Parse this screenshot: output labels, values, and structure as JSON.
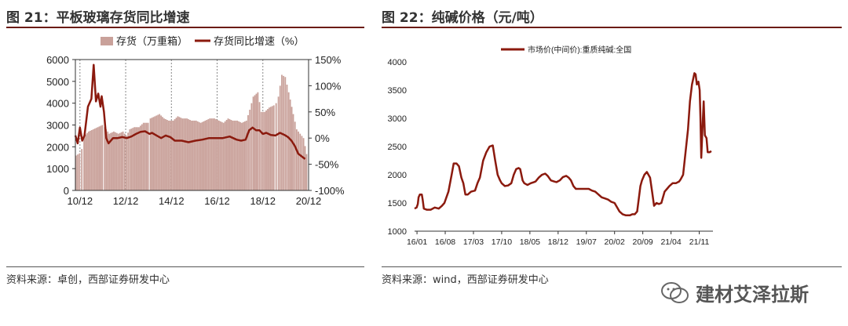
{
  "left": {
    "title": "图 21：平板玻璃存货同比增速",
    "source": "资料来源：卓创，西部证券研发中心"
  },
  "right": {
    "title": "图 22：纯碱价格（元/吨）",
    "source": "资料来源：wind，西部证券研发中心"
  },
  "watermark": {
    "text": "建材艾泽拉斯",
    "icon": "wechat-icon"
  },
  "colors": {
    "bar": "#c9a19a",
    "line": "#8b1a0e",
    "rule": "#6b1b14"
  },
  "chart_data": [
    {
      "type": "bar+line",
      "title": "",
      "legend": [
        "存货（万重箱）",
        "存货同比增速（%）"
      ],
      "legend_position": "top",
      "x_ticks": [
        "10/12",
        "12/12",
        "14/12",
        "16/12",
        "18/12",
        "20/12"
      ],
      "y_left": {
        "ylim": [
          0,
          6000
        ],
        "ticks": [
          "0",
          "1000",
          "2000",
          "3000",
          "4000",
          "5000",
          "6000"
        ]
      },
      "y_right": {
        "ylim": [
          -100,
          150
        ],
        "ticks": [
          "-100%",
          "-50%",
          "0%",
          "50%",
          "100%",
          "150%"
        ]
      },
      "grid": true,
      "series": [
        {
          "name": "存货（万重箱）",
          "kind": "bar",
          "axis": "left",
          "points": [
            [
              2010.75,
              1600
            ],
            [
              2010.9,
              1700
            ],
            [
              2011.0,
              1900
            ],
            [
              2011.1,
              2500
            ],
            [
              2011.3,
              2700
            ],
            [
              2011.5,
              2800
            ],
            [
              2011.7,
              2900
            ],
            [
              2011.9,
              3000
            ],
            [
              2012.0,
              2900
            ],
            [
              2012.2,
              2600
            ],
            [
              2012.4,
              2700
            ],
            [
              2012.6,
              2600
            ],
            [
              2012.8,
              2700
            ],
            [
              2012.95,
              2500
            ],
            [
              2013.1,
              2800
            ],
            [
              2013.3,
              2900
            ],
            [
              2013.5,
              2900
            ],
            [
              2013.7,
              3100
            ],
            [
              2013.9,
              3100
            ],
            [
              2014.0,
              3300
            ],
            [
              2014.2,
              3400
            ],
            [
              2014.4,
              3500
            ],
            [
              2014.6,
              3300
            ],
            [
              2014.8,
              3200
            ],
            [
              2015.0,
              3200
            ],
            [
              2015.2,
              3400
            ],
            [
              2015.4,
              3300
            ],
            [
              2015.6,
              3300
            ],
            [
              2015.8,
              3200
            ],
            [
              2016.0,
              3200
            ],
            [
              2016.2,
              3100
            ],
            [
              2016.4,
              3200
            ],
            [
              2016.6,
              3300
            ],
            [
              2016.8,
              3300
            ],
            [
              2017.0,
              3200
            ],
            [
              2017.2,
              3100
            ],
            [
              2017.4,
              3300
            ],
            [
              2017.6,
              3200
            ],
            [
              2017.8,
              3200
            ],
            [
              2018.0,
              3100
            ],
            [
              2018.2,
              3200
            ],
            [
              2018.35,
              3700
            ],
            [
              2018.5,
              4300
            ],
            [
              2018.7,
              4500
            ],
            [
              2018.85,
              3600
            ],
            [
              2019.0,
              3600
            ],
            [
              2019.2,
              3800
            ],
            [
              2019.4,
              3900
            ],
            [
              2019.5,
              4000
            ],
            [
              2019.6,
              4300
            ],
            [
              2019.75,
              5300
            ],
            [
              2019.9,
              5200
            ],
            [
              2020.05,
              4500
            ],
            [
              2020.25,
              3500
            ],
            [
              2020.4,
              2800
            ],
            [
              2020.55,
              2600
            ],
            [
              2020.7,
              2400
            ],
            [
              2020.9,
              1300
            ]
          ]
        },
        {
          "name": "存货同比增速（%）",
          "kind": "line",
          "axis": "right",
          "points": [
            [
              2010.75,
              5
            ],
            [
              2010.85,
              -10
            ],
            [
              2010.95,
              20
            ],
            [
              2011.05,
              -5
            ],
            [
              2011.15,
              5
            ],
            [
              2011.3,
              60
            ],
            [
              2011.45,
              75
            ],
            [
              2011.55,
              140
            ],
            [
              2011.65,
              70
            ],
            [
              2011.75,
              85
            ],
            [
              2011.85,
              60
            ],
            [
              2011.9,
              80
            ],
            [
              2012.0,
              50
            ],
            [
              2012.1,
              0
            ],
            [
              2012.2,
              -10
            ],
            [
              2012.4,
              0
            ],
            [
              2012.6,
              0
            ],
            [
              2012.8,
              2
            ],
            [
              2013.0,
              0
            ],
            [
              2013.2,
              3
            ],
            [
              2013.4,
              8
            ],
            [
              2013.6,
              12
            ],
            [
              2013.8,
              13
            ],
            [
              2014.0,
              8
            ],
            [
              2014.1,
              10
            ],
            [
              2014.3,
              5
            ],
            [
              2014.5,
              0
            ],
            [
              2014.7,
              5
            ],
            [
              2014.9,
              2
            ],
            [
              2015.1,
              -5
            ],
            [
              2015.4,
              -5
            ],
            [
              2015.7,
              -8
            ],
            [
              2016.0,
              -5
            ],
            [
              2016.3,
              -3
            ],
            [
              2016.6,
              0
            ],
            [
              2016.9,
              0
            ],
            [
              2017.2,
              0
            ],
            [
              2017.5,
              3
            ],
            [
              2017.8,
              -3
            ],
            [
              2018.0,
              -5
            ],
            [
              2018.2,
              -3
            ],
            [
              2018.35,
              15
            ],
            [
              2018.5,
              20
            ],
            [
              2018.65,
              15
            ],
            [
              2018.8,
              15
            ],
            [
              2018.95,
              8
            ],
            [
              2019.1,
              10
            ],
            [
              2019.3,
              6
            ],
            [
              2019.5,
              5
            ],
            [
              2019.7,
              10
            ],
            [
              2019.9,
              6
            ],
            [
              2020.05,
              2
            ],
            [
              2020.2,
              -5
            ],
            [
              2020.35,
              -15
            ],
            [
              2020.5,
              -30
            ],
            [
              2020.65,
              -35
            ],
            [
              2020.8,
              -40
            ]
          ]
        }
      ]
    },
    {
      "type": "line",
      "title": "",
      "legend": [
        "市场价(中间价):重质纯碱:全国"
      ],
      "legend_position": "top",
      "x_ticks": [
        "16/01",
        "16/08",
        "17/03",
        "17/10",
        "18/05",
        "18/12",
        "19/07",
        "20/02",
        "20/09",
        "21/04",
        "21/11"
      ],
      "ylim": [
        1000,
        4000
      ],
      "y_ticks": [
        "1000",
        "1500",
        "2000",
        "2500",
        "3000",
        "3500",
        "4000"
      ],
      "grid": false,
      "series": [
        {
          "name": "市场价(中间价):重质纯碱:全国",
          "points": [
            [
              0.0,
              1400
            ],
            [
              0.25,
              1420
            ],
            [
              0.4,
              1480
            ],
            [
              0.5,
              1600
            ],
            [
              0.65,
              1650
            ],
            [
              0.9,
              1650
            ],
            [
              1.0,
              1560
            ],
            [
              1.15,
              1400
            ],
            [
              1.5,
              1380
            ],
            [
              2.0,
              1380
            ],
            [
              2.5,
              1420
            ],
            [
              3.0,
              1400
            ],
            [
              3.4,
              1450
            ],
            [
              3.7,
              1500
            ],
            [
              4.2,
              1700
            ],
            [
              4.6,
              2000
            ],
            [
              4.85,
              2200
            ],
            [
              5.2,
              2200
            ],
            [
              5.5,
              2150
            ],
            [
              5.8,
              1950
            ],
            [
              6.05,
              1850
            ],
            [
              6.3,
              1650
            ],
            [
              6.6,
              1650
            ],
            [
              7.0,
              1700
            ],
            [
              7.5,
              1720
            ],
            [
              7.8,
              1850
            ],
            [
              8.1,
              1950
            ],
            [
              8.5,
              2250
            ],
            [
              8.9,
              2400
            ],
            [
              9.3,
              2500
            ],
            [
              9.7,
              2520
            ],
            [
              10.0,
              2250
            ],
            [
              10.3,
              2000
            ],
            [
              10.6,
              1900
            ],
            [
              10.8,
              1850
            ],
            [
              11.2,
              1800
            ],
            [
              11.6,
              1810
            ],
            [
              12.0,
              1850
            ],
            [
              12.3,
              2000
            ],
            [
              12.6,
              2100
            ],
            [
              12.9,
              2120
            ],
            [
              13.1,
              2100
            ],
            [
              13.4,
              1900
            ],
            [
              13.6,
              1850
            ],
            [
              14.0,
              1820
            ],
            [
              14.4,
              1850
            ],
            [
              14.8,
              1870
            ],
            [
              15.0,
              1880
            ],
            [
              15.4,
              1950
            ],
            [
              15.8,
              2000
            ],
            [
              16.2,
              2020
            ],
            [
              16.5,
              1980
            ],
            [
              16.9,
              1900
            ],
            [
              17.3,
              1880
            ],
            [
              17.6,
              1870
            ],
            [
              18.0,
              1900
            ],
            [
              18.4,
              1960
            ],
            [
              18.8,
              1980
            ],
            [
              19.1,
              1950
            ],
            [
              19.4,
              1900
            ],
            [
              19.7,
              1800
            ],
            [
              20.0,
              1750
            ],
            [
              20.4,
              1750
            ],
            [
              21.0,
              1750
            ],
            [
              21.6,
              1750
            ],
            [
              22.0,
              1720
            ],
            [
              22.4,
              1700
            ],
            [
              22.8,
              1650
            ],
            [
              23.2,
              1600
            ],
            [
              23.6,
              1580
            ],
            [
              24.0,
              1560
            ],
            [
              24.4,
              1520
            ],
            [
              24.8,
              1500
            ],
            [
              25.0,
              1450
            ],
            [
              25.4,
              1350
            ],
            [
              25.8,
              1300
            ],
            [
              26.2,
              1280
            ],
            [
              26.7,
              1280
            ],
            [
              27.0,
              1300
            ],
            [
              27.3,
              1300
            ],
            [
              27.6,
              1350
            ],
            [
              28.0,
              1800
            ],
            [
              28.2,
              1900
            ],
            [
              28.5,
              2000
            ],
            [
              28.8,
              2050
            ],
            [
              29.2,
              1950
            ],
            [
              29.45,
              1700
            ],
            [
              29.7,
              1450
            ],
            [
              30.0,
              1500
            ],
            [
              30.3,
              1480
            ],
            [
              30.6,
              1500
            ],
            [
              31.0,
              1700
            ],
            [
              31.3,
              1750
            ],
            [
              31.6,
              1800
            ],
            [
              32.0,
              1850
            ],
            [
              32.4,
              1850
            ],
            [
              32.8,
              1880
            ],
            [
              33.0,
              1920
            ],
            [
              33.3,
              2000
            ],
            [
              33.6,
              2400
            ],
            [
              33.9,
              2800
            ],
            [
              34.15,
              3300
            ],
            [
              34.4,
              3600
            ],
            [
              34.7,
              3800
            ],
            [
              34.85,
              3780
            ],
            [
              35.0,
              3600
            ],
            [
              35.2,
              3650
            ],
            [
              35.35,
              3500
            ],
            [
              35.45,
              3000
            ],
            [
              35.55,
              2300
            ],
            [
              35.7,
              2800
            ],
            [
              35.85,
              3300
            ],
            [
              36.0,
              2700
            ],
            [
              36.2,
              2650
            ],
            [
              36.35,
              2400
            ],
            [
              36.6,
              2400
            ],
            [
              36.8,
              2420
            ]
          ]
        }
      ]
    }
  ]
}
